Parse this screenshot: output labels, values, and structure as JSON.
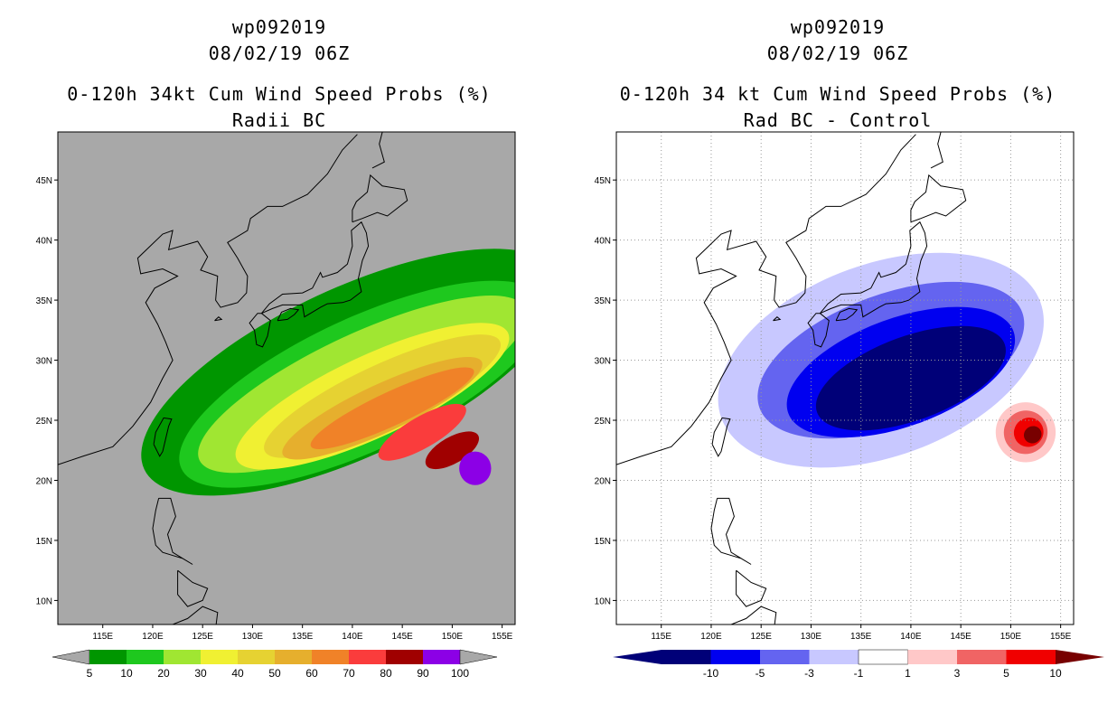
{
  "panels": [
    {
      "storm_id": "wp092019",
      "datetime": "08/02/19 06Z",
      "product": "0-120h 34kt Cum Wind Speed Probs (%)",
      "subtitle": "Radii BC",
      "background_color": "#a8a8a8",
      "colorbar": {
        "labels": [
          "5",
          "10",
          "20",
          "30",
          "40",
          "50",
          "60",
          "70",
          "80",
          "90",
          "100"
        ],
        "colors": [
          "#009600",
          "#1ec81e",
          "#a0e632",
          "#f0f032",
          "#e6d232",
          "#e6af2d",
          "#f08228",
          "#fa3c3c",
          "#a00000",
          "#8c00e6"
        ],
        "end_color": "#a8a8a8"
      }
    },
    {
      "storm_id": "wp092019",
      "datetime": "08/02/19 06Z",
      "product": "0-120h 34 kt Cum Wind Speed Probs (%)",
      "subtitle": "Rad BC - Control",
      "background_color": "#ffffff",
      "colorbar": {
        "labels": [
          "-10",
          "-5",
          "-3",
          "-1",
          "1",
          "3",
          "5",
          "10"
        ],
        "colors": [
          "#000078",
          "#0000f0",
          "#6464f0",
          "#c8c8ff",
          "#ffffff",
          "#ffc8c8",
          "#f06464",
          "#f00000"
        ],
        "end_left": "#000078",
        "end_right": "#780000"
      }
    }
  ],
  "axes": {
    "lon_labels": [
      "115E",
      "120E",
      "125E",
      "130E",
      "135E",
      "140E",
      "145E",
      "150E",
      "155E"
    ],
    "lat_labels": [
      "45N",
      "40N",
      "35N",
      "30N",
      "25N",
      "20N",
      "15N",
      "10N"
    ],
    "lon_values": [
      115,
      120,
      125,
      130,
      135,
      140,
      145,
      150,
      155
    ],
    "lat_values": [
      45,
      40,
      35,
      30,
      25,
      20,
      15,
      10
    ],
    "lon_range": [
      110.5,
      156.3
    ],
    "lat_range": [
      8,
      49
    ]
  },
  "shading": {
    "prob": [
      {
        "color": "#009600",
        "center": [
          140,
          29
        ],
        "rx": 23,
        "ry": 7,
        "angle": -25
      },
      {
        "color": "#1ec81e",
        "center": [
          141,
          28
        ],
        "rx": 20,
        "ry": 5.5,
        "angle": -25
      },
      {
        "color": "#a0e632",
        "center": [
          141,
          28
        ],
        "rx": 18,
        "ry": 4.2,
        "angle": -25
      },
      {
        "color": "#f0f032",
        "center": [
          142,
          27
        ],
        "rx": 15,
        "ry": 3.4,
        "angle": -25
      },
      {
        "color": "#e6d232",
        "center": [
          143,
          27
        ],
        "rx": 13,
        "ry": 2.6,
        "angle": -25
      },
      {
        "color": "#e6af2d",
        "center": [
          143,
          26
        ],
        "rx": 11,
        "ry": 2.0,
        "angle": -25
      },
      {
        "color": "#f08228",
        "center": [
          144,
          26
        ],
        "rx": 9,
        "ry": 1.4,
        "angle": -25
      },
      {
        "color": "#fa3c3c",
        "center": [
          147,
          24
        ],
        "rx": 5,
        "ry": 1.3,
        "angle": -30
      },
      {
        "color": "#a00000",
        "center": [
          150,
          22.5
        ],
        "rx": 3,
        "ry": 1.1,
        "angle": -30
      },
      {
        "color": "#8c00e6",
        "center": [
          152.3,
          21
        ],
        "rx": 1.6,
        "ry": 1.4,
        "angle": 0
      }
    ],
    "diff": [
      {
        "color": "#c8c8ff",
        "center": [
          137,
          30
        ],
        "rx": 17,
        "ry": 8,
        "angle": -20
      },
      {
        "color": "#6464f0",
        "center": [
          138,
          30
        ],
        "rx": 14,
        "ry": 5.5,
        "angle": -20
      },
      {
        "color": "#0000f0",
        "center": [
          139,
          29
        ],
        "rx": 12,
        "ry": 4.5,
        "angle": -20
      },
      {
        "color": "#000078",
        "center": [
          140,
          28.5
        ],
        "rx": 10,
        "ry": 3.5,
        "angle": -20
      },
      {
        "color": "#ffc8c8",
        "center": [
          151.5,
          24
        ],
        "rx": 3,
        "ry": 2.5,
        "angle": -35
      },
      {
        "color": "#f06464",
        "center": [
          151.5,
          24
        ],
        "rx": 2.2,
        "ry": 1.8,
        "angle": -35
      },
      {
        "color": "#f00000",
        "center": [
          151.8,
          24
        ],
        "rx": 1.5,
        "ry": 1.2,
        "angle": -35
      },
      {
        "color": "#780000",
        "center": [
          152.2,
          23.8
        ],
        "rx": 0.9,
        "ry": 0.7,
        "angle": -35
      }
    ]
  }
}
